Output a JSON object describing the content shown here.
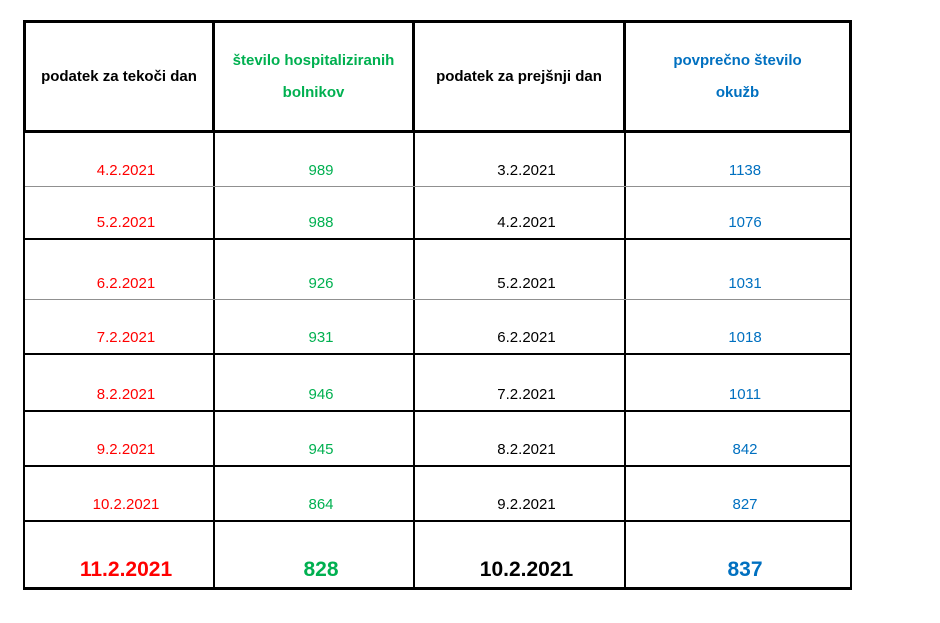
{
  "table": {
    "headers": [
      {
        "label": "podatek za tekoči dan",
        "color": "#000000"
      },
      {
        "label": "število hospitaliziranih\nbolnikov",
        "color": "#00B050"
      },
      {
        "label": "podatek za prejšnji dan",
        "color": "#000000"
      },
      {
        "label": "povprečno število\nokužb",
        "color": "#0070C0"
      }
    ],
    "colors": {
      "current_date": "#FF0000",
      "hospitalized": "#00B050",
      "previous_date": "#000000",
      "avg_infections": "#0070C0"
    },
    "rows": [
      {
        "current_date": "4.2.2021",
        "hospitalized": "989",
        "previous_date": "3.2.2021",
        "avg_infections": "1138"
      },
      {
        "current_date": "5.2.2021",
        "hospitalized": "988",
        "previous_date": "4.2.2021",
        "avg_infections": "1076"
      },
      {
        "current_date": "6.2.2021",
        "hospitalized": "926",
        "previous_date": "5.2.2021",
        "avg_infections": "1031"
      },
      {
        "current_date": "7.2.2021",
        "hospitalized": "931",
        "previous_date": "6.2.2021",
        "avg_infections": "1018"
      },
      {
        "current_date": "8.2.2021",
        "hospitalized": "946",
        "previous_date": "7.2.2021",
        "avg_infections": "1011"
      },
      {
        "current_date": "9.2.2021",
        "hospitalized": "945",
        "previous_date": "8.2.2021",
        "avg_infections": "842"
      },
      {
        "current_date": "10.2.2021",
        "hospitalized": "864",
        "previous_date": "9.2.2021",
        "avg_infections": "827"
      },
      {
        "current_date": "11.2.2021",
        "hospitalized": "828",
        "previous_date": "10.2.2021",
        "avg_infections": "837"
      }
    ]
  },
  "chart_data": {
    "type": "table",
    "title": "",
    "columns": [
      "podatek za tekoči dan",
      "število hospitaliziranih bolnikov",
      "podatek za prejšnji dan",
      "povprečno število okužb"
    ],
    "rows": [
      [
        "4.2.2021",
        989,
        "3.2.2021",
        1138
      ],
      [
        "5.2.2021",
        988,
        "4.2.2021",
        1076
      ],
      [
        "6.2.2021",
        926,
        "5.2.2021",
        1031
      ],
      [
        "7.2.2021",
        931,
        "6.2.2021",
        1018
      ],
      [
        "8.2.2021",
        946,
        "7.2.2021",
        1011
      ],
      [
        "9.2.2021",
        945,
        "8.2.2021",
        842
      ],
      [
        "10.2.2021",
        864,
        "9.2.2021",
        827
      ],
      [
        "11.2.2021",
        828,
        "10.2.2021",
        837
      ]
    ],
    "emphasized_row_index": 7,
    "layout_hints": {
      "grid": "on",
      "header_border": "thick",
      "last_row_style": "bold-large"
    }
  }
}
